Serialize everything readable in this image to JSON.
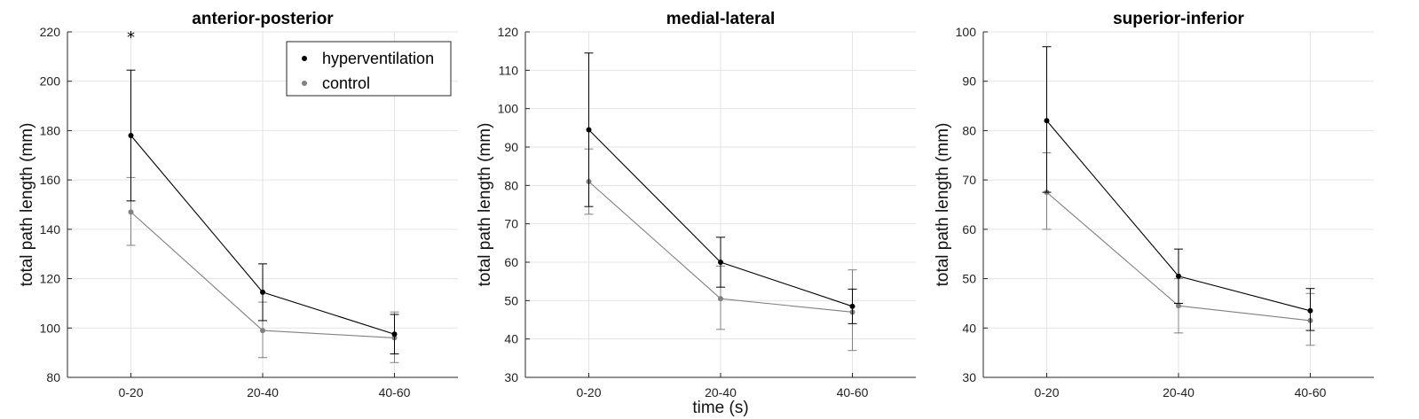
{
  "figure": {
    "xlabel": "time (s)"
  },
  "legend": {
    "entries": [
      {
        "name": "hyperventilation",
        "color": "#000000"
      },
      {
        "name": "control",
        "color": "#808080"
      }
    ]
  },
  "chart_data": [
    {
      "type": "line",
      "title": "anterior-posterior",
      "ylabel": "total path length (mm)",
      "xlabel": "",
      "categories": [
        "0-20",
        "20-40",
        "40-60"
      ],
      "ylim": [
        80,
        220
      ],
      "yticks": [
        80,
        100,
        120,
        140,
        160,
        180,
        200,
        220
      ],
      "grid": true,
      "legend_position": "top-right",
      "series": [
        {
          "name": "hyperventilation",
          "color": "#000000",
          "values": [
            178,
            114.5,
            97.5
          ],
          "err_low": [
            151.5,
            103,
            89.5
          ],
          "err_high": [
            204.5,
            126,
            105.5
          ]
        },
        {
          "name": "control",
          "color": "#808080",
          "values": [
            147,
            99,
            96
          ],
          "err_low": [
            133.5,
            88,
            86
          ],
          "err_high": [
            161,
            110.5,
            106.5
          ]
        }
      ],
      "annotations": [
        {
          "text": "*",
          "category": "0-20",
          "y": 219
        }
      ]
    },
    {
      "type": "line",
      "title": "medial-lateral",
      "ylabel": "total path length (mm)",
      "xlabel": "time (s)",
      "categories": [
        "0-20",
        "20-40",
        "40-60"
      ],
      "ylim": [
        30,
        120
      ],
      "yticks": [
        30,
        40,
        50,
        60,
        70,
        80,
        90,
        100,
        110,
        120
      ],
      "grid": true,
      "series": [
        {
          "name": "hyperventilation",
          "color": "#000000",
          "values": [
            94.5,
            60,
            48.5
          ],
          "err_low": [
            74.5,
            53.5,
            44
          ],
          "err_high": [
            114.5,
            66.5,
            53
          ]
        },
        {
          "name": "control",
          "color": "#808080",
          "values": [
            81,
            50.5,
            47
          ],
          "err_low": [
            72.5,
            42.5,
            37
          ],
          "err_high": [
            89.5,
            59,
            58
          ]
        }
      ],
      "annotations": []
    },
    {
      "type": "line",
      "title": "superior-inferior",
      "ylabel": "total path length (mm)",
      "xlabel": "",
      "categories": [
        "0-20",
        "20-40",
        "40-60"
      ],
      "ylim": [
        30,
        100
      ],
      "yticks": [
        30,
        40,
        50,
        60,
        70,
        80,
        90,
        100
      ],
      "grid": true,
      "series": [
        {
          "name": "hyperventilation",
          "color": "#000000",
          "values": [
            82,
            50.5,
            43.5
          ],
          "err_low": [
            67.5,
            45,
            39.5
          ],
          "err_high": [
            97,
            56,
            48
          ]
        },
        {
          "name": "control",
          "color": "#808080",
          "values": [
            67.5,
            44.5,
            41.5
          ],
          "err_low": [
            60,
            39,
            36.5
          ],
          "err_high": [
            75.5,
            50,
            47
          ]
        }
      ],
      "annotations": []
    }
  ]
}
